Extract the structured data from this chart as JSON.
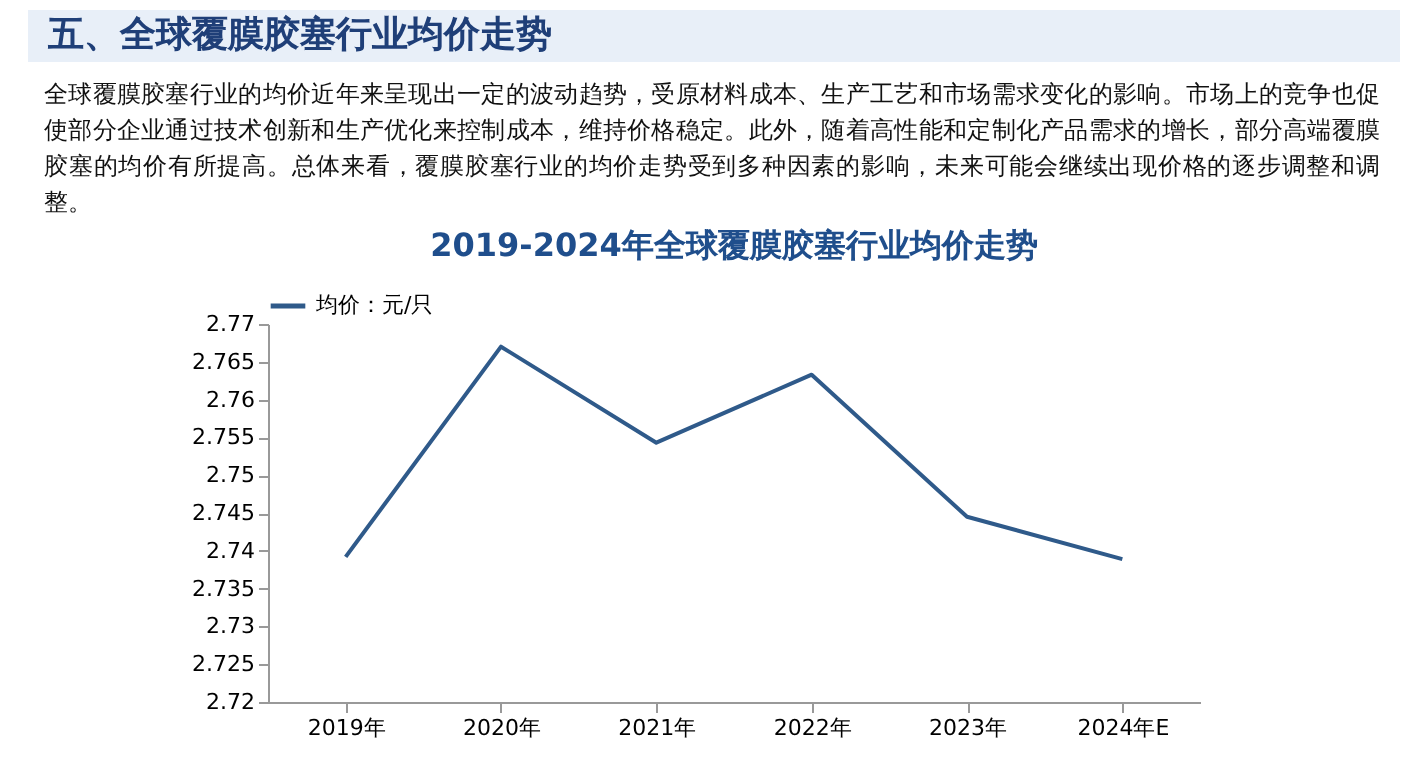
{
  "chart_data": {
    "type": "line",
    "title": "2019-2024年全球覆膜胶塞行业均价走势",
    "annotations": [
      "五、全球覆膜胶塞行业均价走势",
      "全球覆膜胶塞行业的均价近年来呈现出一定的波动趋势，受原材料成本、生产工艺和市场需求变化的影响。市场上的竞争也促使部分企业通过技术创新和生产优化来控制成本，维持价格稳定。此外，随着高性能和定制化产品需求的增长，部分高端覆膜胶塞的均价有所提高。总体来看，覆膜胶塞行业的均价走势受到多种因素的影响，未来可能会继续出现价格的逐步调整和调整。"
    ],
    "categories": [
      "2019年",
      "2020年",
      "2021年",
      "2022年",
      "2023年",
      "2024年E"
    ],
    "series": [
      {
        "name": "均价：元/只",
        "color": "#2f5a8a",
        "values": [
          2.7392,
          2.767,
          2.7543,
          2.7633,
          2.7445,
          2.7389
        ]
      }
    ],
    "ylim": [
      2.72,
      2.77
    ],
    "yticks": [
      2.72,
      2.725,
      2.73,
      2.735,
      2.74,
      2.745,
      2.75,
      2.755,
      2.76,
      2.765,
      2.77
    ],
    "legend": "top"
  }
}
